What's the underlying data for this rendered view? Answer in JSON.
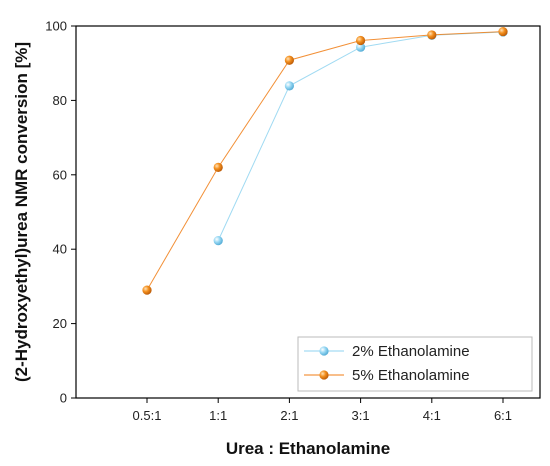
{
  "chart_data": {
    "type": "line",
    "xlabel": "Urea : Ethanolamine",
    "ylabel": "(2-Hydroxyethyl)urea NMR conversion [%]",
    "categories": [
      "0.5:1",
      "1:1",
      "2:1",
      "3:1",
      "4:1",
      "6:1"
    ],
    "ylim": [
      0,
      100
    ],
    "yticks": [
      0,
      20,
      40,
      60,
      80,
      100
    ],
    "grid": false,
    "legend_position": "bottom-right",
    "series": [
      {
        "name": "2% Ethanolamine",
        "color": "#8fd3f0",
        "values": [
          null,
          42.3,
          83.9,
          94.3,
          97.5,
          98.4
        ]
      },
      {
        "name": "5% Ethanolamine",
        "color": "#f07d14",
        "values": [
          29.0,
          62.0,
          90.8,
          96.1,
          97.6,
          98.5
        ]
      }
    ]
  }
}
